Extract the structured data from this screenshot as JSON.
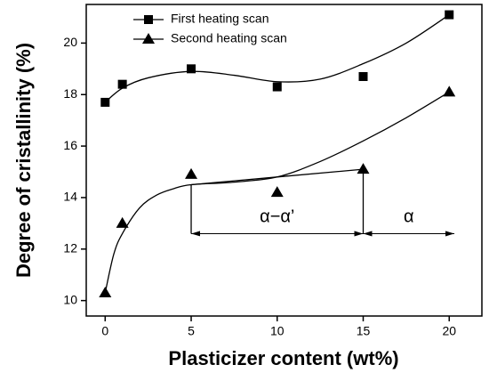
{
  "chart_data": {
    "type": "scatter",
    "x_label": "Plasticizer content (wt%)",
    "y_label": "Degree of cristallinity (%)",
    "xlim": [
      -1.1,
      21.9
    ],
    "xticks": [
      0,
      5,
      10,
      15,
      20
    ],
    "ylim": [
      9.4,
      21.5
    ],
    "yticks": [
      10,
      12,
      14,
      16,
      18,
      20
    ],
    "legend": "top-left",
    "series": [
      {
        "name": "First heating scan",
        "color": "#000000",
        "marker": "square",
        "x": [
          0,
          1,
          5,
          10,
          15,
          20
        ],
        "values": [
          17.7,
          18.4,
          19.0,
          18.3,
          18.7,
          21.1
        ]
      },
      {
        "name": "Second heating scan",
        "color": "#000000",
        "marker": "triangle",
        "x": [
          0,
          1,
          5,
          10,
          15,
          20
        ],
        "values": [
          10.3,
          13.0,
          14.9,
          14.2,
          15.1,
          18.1
        ]
      }
    ],
    "curves": [
      {
        "x": [
          0,
          1,
          2.5,
          5,
          7.5,
          10,
          12.5,
          15,
          17.5,
          20
        ],
        "values": [
          17.7,
          18.25,
          18.65,
          18.9,
          18.75,
          18.5,
          18.6,
          19.2,
          20.0,
          21.1
        ]
      },
      {
        "x": [
          0,
          0.5,
          1,
          2,
          3,
          4,
          5,
          7.5,
          10,
          12.5,
          15,
          17.5,
          20
        ],
        "values": [
          10.3,
          11.8,
          12.6,
          13.6,
          14.1,
          14.35,
          14.5,
          14.6,
          14.8,
          15.4,
          16.2,
          17.1,
          18.1
        ]
      },
      {
        "x": [
          5,
          15
        ],
        "values": [
          14.5,
          15.1
        ]
      },
      {
        "x": [
          5,
          5
        ],
        "values": [
          14.5,
          12.6
        ]
      },
      {
        "x": [
          15,
          15
        ],
        "values": [
          15.1,
          12.6
        ]
      }
    ],
    "annotations": [
      {
        "label": "α−α’",
        "x": [
          5,
          15
        ],
        "y": 12.6
      },
      {
        "label": "α",
        "x": [
          15,
          20.3
        ],
        "y": 12.6
      }
    ]
  }
}
